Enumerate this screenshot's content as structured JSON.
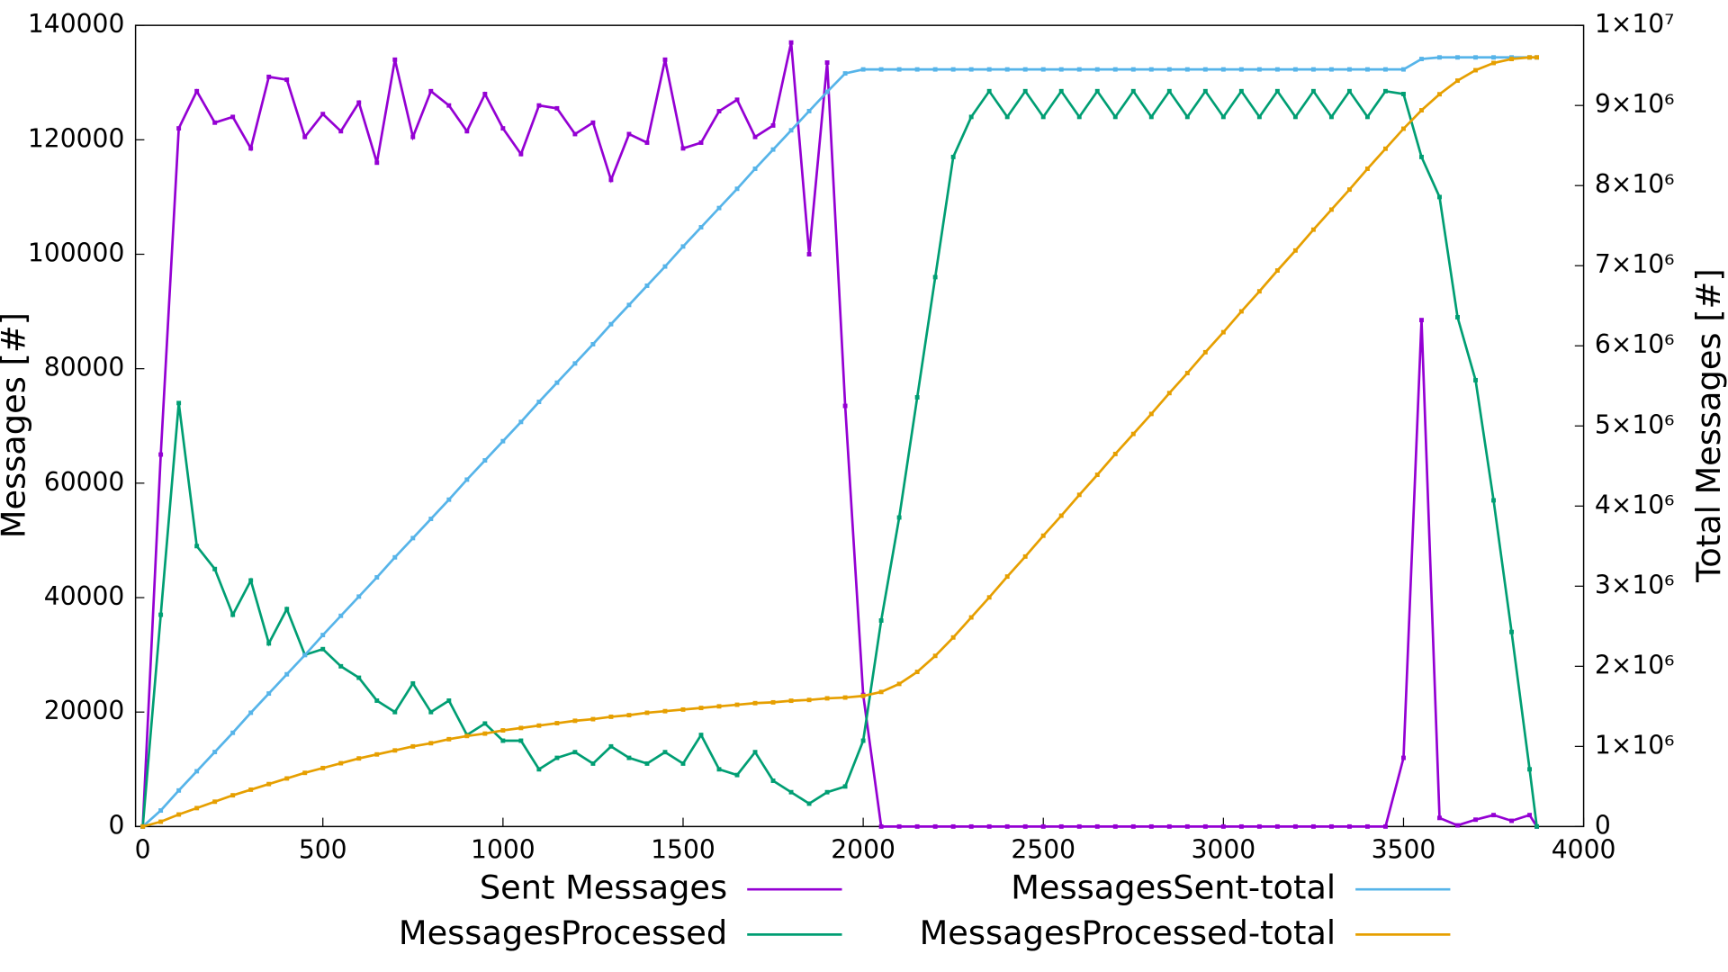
{
  "chart_data": {
    "type": "line",
    "xlabel": null,
    "ylabel": "Messages [#]",
    "y2label": "Total Messages [#]",
    "xlim": [
      -20,
      4000
    ],
    "xticks": [
      0,
      500,
      1000,
      1500,
      2000,
      2500,
      3000,
      3500,
      4000
    ],
    "ylim": [
      0,
      140000
    ],
    "yticks": [
      0,
      20000,
      40000,
      60000,
      80000,
      100000,
      120000,
      140000
    ],
    "y2lim": [
      0,
      10000000
    ],
    "y2ticks": [
      0,
      {
        "value": 1000000,
        "label": "1×10⁶"
      },
      {
        "value": 2000000,
        "label": "2×10⁶"
      },
      {
        "value": 3000000,
        "label": "3×10⁶"
      },
      {
        "value": 4000000,
        "label": "4×10⁶"
      },
      {
        "value": 5000000,
        "label": "5×10⁶"
      },
      {
        "value": 6000000,
        "label": "6×10⁶"
      },
      {
        "value": 7000000,
        "label": "7×10⁶"
      },
      {
        "value": 8000000,
        "label": "8×10⁶"
      },
      {
        "value": 9000000,
        "label": "9×10⁶"
      },
      {
        "value": 10000000,
        "label": "1×10⁷"
      }
    ],
    "legend": "bottom",
    "x": [
      0,
      50,
      100,
      150,
      200,
      250,
      300,
      350,
      400,
      450,
      500,
      550,
      600,
      650,
      700,
      750,
      800,
      850,
      900,
      950,
      1000,
      1050,
      1100,
      1150,
      1200,
      1250,
      1300,
      1350,
      1400,
      1450,
      1500,
      1550,
      1600,
      1650,
      1700,
      1750,
      1800,
      1850,
      1900,
      1950,
      2000,
      2050,
      2100,
      2150,
      2200,
      2250,
      2300,
      2350,
      2400,
      2450,
      2500,
      2550,
      2600,
      2650,
      2700,
      2750,
      2800,
      2850,
      2900,
      2950,
      3000,
      3050,
      3100,
      3150,
      3200,
      3250,
      3300,
      3350,
      3400,
      3450,
      3500,
      3550,
      3600,
      3650,
      3700,
      3750,
      3800,
      3850,
      3870
    ],
    "series": [
      {
        "name": "Sent Messages",
        "color": "#9400d3",
        "axis": "y",
        "values": [
          0,
          65000,
          122000,
          128500,
          123000,
          124000,
          118500,
          131000,
          130500,
          120500,
          124500,
          121500,
          126500,
          116000,
          134000,
          120500,
          128500,
          126000,
          121500,
          128000,
          122000,
          117500,
          126000,
          125500,
          121000,
          123000,
          113000,
          121000,
          119500,
          134000,
          118500,
          119500,
          125000,
          127000,
          120500,
          122500,
          137000,
          100000,
          133500,
          73500,
          23000,
          0,
          0,
          0,
          0,
          0,
          0,
          0,
          0,
          0,
          0,
          0,
          0,
          0,
          0,
          0,
          0,
          0,
          0,
          0,
          0,
          0,
          0,
          0,
          0,
          0,
          0,
          0,
          0,
          0,
          12000,
          88500,
          1500,
          200,
          1200,
          2000,
          1000,
          2000,
          0
        ]
      },
      {
        "name": "MessagesProcessed",
        "color": "#009e73",
        "axis": "y",
        "values": [
          0,
          37000,
          74000,
          49000,
          45000,
          37000,
          43000,
          32000,
          38000,
          30000,
          31000,
          28000,
          26000,
          22000,
          20000,
          25000,
          20000,
          22000,
          16000,
          18000,
          15000,
          15000,
          10000,
          12000,
          13000,
          11000,
          14000,
          12000,
          11000,
          13000,
          11000,
          16000,
          10000,
          9000,
          13000,
          8000,
          6000,
          4000,
          6000,
          7000,
          15000,
          36000,
          54000,
          75000,
          96000,
          117000,
          124000,
          128500,
          124000,
          128500,
          124000,
          128500,
          124000,
          128500,
          124000,
          128500,
          124000,
          128500,
          124000,
          128500,
          124000,
          128500,
          124000,
          128500,
          124000,
          128500,
          124000,
          128500,
          124000,
          128500,
          128000,
          117000,
          110000,
          89000,
          78000,
          57000,
          34000,
          10000,
          0
        ]
      },
      {
        "name": "MessagesSent-total",
        "color": "#56b4e9",
        "axis": "y2",
        "values": [
          0,
          200000,
          450000,
          690000,
          930000,
          1170000,
          1420000,
          1660000,
          1900000,
          2140000,
          2390000,
          2630000,
          2870000,
          3110000,
          3360000,
          3600000,
          3840000,
          4080000,
          4330000,
          4570000,
          4810000,
          5050000,
          5300000,
          5540000,
          5780000,
          6020000,
          6270000,
          6510000,
          6750000,
          6990000,
          7240000,
          7480000,
          7720000,
          7960000,
          8210000,
          8450000,
          8690000,
          8930000,
          9170000,
          9400000,
          9450000,
          9450000,
          9450000,
          9450000,
          9450000,
          9450000,
          9450000,
          9450000,
          9450000,
          9450000,
          9450000,
          9450000,
          9450000,
          9450000,
          9450000,
          9450000,
          9450000,
          9450000,
          9450000,
          9450000,
          9450000,
          9450000,
          9450000,
          9450000,
          9450000,
          9450000,
          9450000,
          9450000,
          9450000,
          9450000,
          9450000,
          9580000,
          9600000,
          9600000,
          9600000,
          9600000,
          9600000,
          9600000,
          9600000
        ]
      },
      {
        "name": "MessagesProcessed-total",
        "color": "#e69f00",
        "axis": "y2",
        "values": [
          0,
          60000,
          150000,
          230000,
          310000,
          390000,
          460000,
          530000,
          600000,
          670000,
          730000,
          790000,
          850000,
          900000,
          950000,
          1000000,
          1040000,
          1090000,
          1130000,
          1160000,
          1200000,
          1230000,
          1260000,
          1290000,
          1320000,
          1340000,
          1370000,
          1390000,
          1420000,
          1440000,
          1460000,
          1480000,
          1500000,
          1520000,
          1540000,
          1550000,
          1570000,
          1580000,
          1600000,
          1610000,
          1630000,
          1680000,
          1780000,
          1930000,
          2130000,
          2360000,
          2610000,
          2860000,
          3120000,
          3370000,
          3630000,
          3880000,
          4140000,
          4390000,
          4650000,
          4900000,
          5150000,
          5410000,
          5660000,
          5920000,
          6170000,
          6430000,
          6680000,
          6940000,
          7190000,
          7450000,
          7700000,
          7950000,
          8210000,
          8460000,
          8710000,
          8940000,
          9140000,
          9310000,
          9440000,
          9530000,
          9580000,
          9600000,
          9600000
        ]
      }
    ]
  }
}
